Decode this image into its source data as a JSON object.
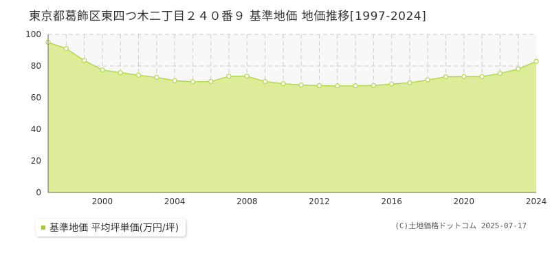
{
  "title": "東京都葛飾区東四つ木二丁目２４０番９ 基準地価 地価推移[1997-2024]",
  "legend": {
    "label": "基準地価 平均坪単価(万円/坪)",
    "color": "#a6cc33"
  },
  "credit": "(C)土地価格ドットコム 2025-07-17",
  "colors": {
    "area": "#dcec98",
    "line": "#b5d94a",
    "marker_fill": "#ffffff",
    "plot_bg": "#f8f8f8",
    "grid": "#cccccc"
  },
  "chart_data": {
    "type": "area",
    "x": [
      1997,
      1998,
      1999,
      2000,
      2001,
      2002,
      2003,
      2004,
      2005,
      2006,
      2007,
      2008,
      2009,
      2010,
      2011,
      2012,
      2013,
      2014,
      2015,
      2016,
      2017,
      2018,
      2019,
      2020,
      2021,
      2022,
      2023,
      2024
    ],
    "series": [
      {
        "name": "基準地価 平均坪単価(万円/坪)",
        "values": [
          95,
          91,
          83.5,
          77.5,
          75.8,
          74.2,
          72.8,
          70.8,
          70,
          70.2,
          73.5,
          73.6,
          70.2,
          68.8,
          68,
          67.6,
          67.4,
          67.5,
          67.7,
          68.6,
          69.4,
          71.2,
          73.2,
          73.3,
          73.3,
          75.3,
          78.1,
          82.9
        ]
      }
    ],
    "xlim": [
      1997,
      2024
    ],
    "ylim": [
      0,
      100
    ],
    "x_ticks": [
      2000,
      2004,
      2008,
      2012,
      2016,
      2020,
      2024
    ],
    "y_ticks": [
      0,
      20,
      40,
      60,
      80,
      100
    ],
    "grid": true
  }
}
